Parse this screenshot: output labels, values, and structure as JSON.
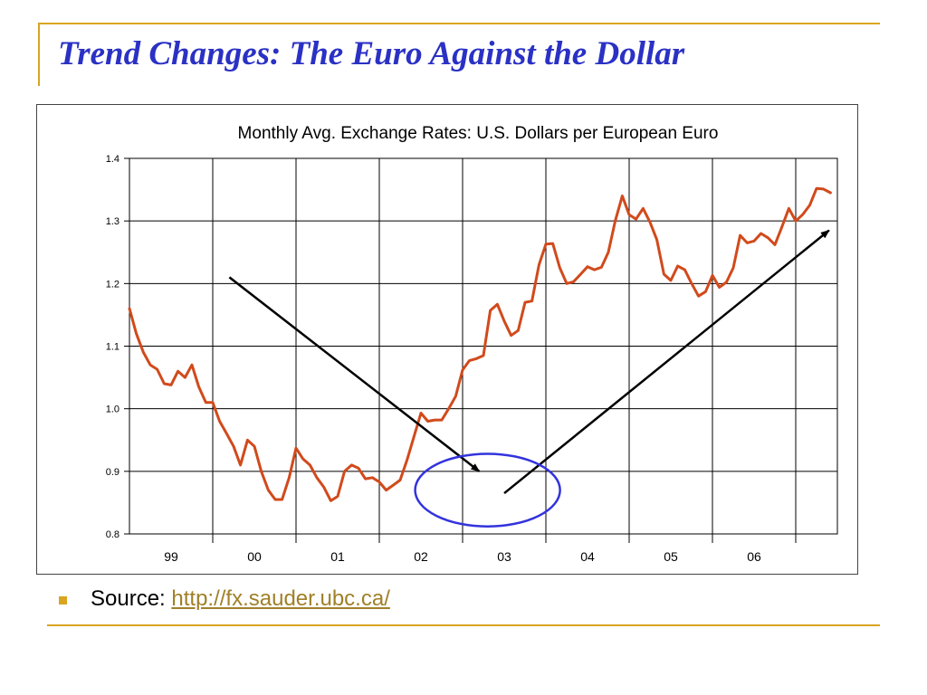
{
  "slide": {
    "title": "Trend Changes: The Euro Against the Dollar",
    "accent_color": "#d9a521",
    "title_color": "#2a31c4"
  },
  "source": {
    "label": "Source:",
    "link_text": "http://fx.sauder.ubc.ca/"
  },
  "chart_data": {
    "type": "line",
    "title": "Monthly Avg. Exchange Rates: U.S. Dollars per European Euro",
    "xlabel": "",
    "ylabel": "",
    "ylim": [
      0.8,
      1.4
    ],
    "xlim": [
      1999.0,
      2007.5
    ],
    "y_ticks": [
      "0.8",
      "0.9",
      "1.0",
      "1.1",
      "1.2",
      "1.3",
      "1.4"
    ],
    "x_categories": [
      "99",
      "00",
      "01",
      "02",
      "03",
      "04",
      "05",
      "06"
    ],
    "grid": true,
    "line_color": "#d14a1c",
    "series": [
      {
        "x": [
          1999.0,
          1999.083,
          1999.167,
          1999.25,
          1999.333,
          1999.417,
          1999.5,
          1999.583,
          1999.667,
          1999.75,
          1999.833,
          1999.917,
          2000.0,
          2000.083,
          2000.167,
          2000.25,
          2000.333,
          2000.417,
          2000.5,
          2000.583,
          2000.667,
          2000.75,
          2000.833,
          2000.917,
          2001.0,
          2001.083,
          2001.167,
          2001.25,
          2001.333,
          2001.417,
          2001.5,
          2001.583,
          2001.667,
          2001.75,
          2001.833,
          2001.917,
          2002.0,
          2002.083,
          2002.167,
          2002.25,
          2002.333,
          2002.417,
          2002.5,
          2002.583,
          2002.667,
          2002.75,
          2002.833,
          2002.917,
          2003.0,
          2003.083,
          2003.167,
          2003.25,
          2003.333,
          2003.417,
          2003.5,
          2003.583,
          2003.667,
          2003.75,
          2003.833,
          2003.917,
          2004.0,
          2004.083,
          2004.167,
          2004.25,
          2004.333,
          2004.417,
          2004.5,
          2004.583,
          2004.667,
          2004.75,
          2004.833,
          2004.917,
          2005.0,
          2005.083,
          2005.167,
          2005.25,
          2005.333,
          2005.417,
          2005.5,
          2005.583,
          2005.667,
          2005.75,
          2005.833,
          2005.917,
          2006.0,
          2006.083,
          2006.167,
          2006.25,
          2006.333,
          2006.417,
          2006.5,
          2006.583,
          2006.667,
          2006.75,
          2006.833,
          2006.917,
          2007.0,
          2007.083,
          2007.167,
          2007.25,
          2007.333,
          2007.417
        ],
        "values": [
          1.16,
          1.12,
          1.09,
          1.07,
          1.063,
          1.04,
          1.038,
          1.06,
          1.05,
          1.07,
          1.035,
          1.01,
          1.01,
          0.98,
          0.96,
          0.94,
          0.91,
          0.95,
          0.94,
          0.9,
          0.87,
          0.855,
          0.855,
          0.89,
          0.937,
          0.92,
          0.91,
          0.89,
          0.875,
          0.853,
          0.86,
          0.9,
          0.91,
          0.905,
          0.888,
          0.89,
          0.883,
          0.87,
          0.878,
          0.886,
          0.918,
          0.956,
          0.993,
          0.98,
          0.982,
          0.982,
          1.0,
          1.02,
          1.062,
          1.077,
          1.08,
          1.085,
          1.157,
          1.167,
          1.14,
          1.117,
          1.125,
          1.17,
          1.172,
          1.23,
          1.263,
          1.264,
          1.225,
          1.2,
          1.203,
          1.215,
          1.227,
          1.222,
          1.226,
          1.25,
          1.3,
          1.34,
          1.31,
          1.303,
          1.32,
          1.298,
          1.27,
          1.215,
          1.205,
          1.228,
          1.222,
          1.2,
          1.18,
          1.187,
          1.213,
          1.194,
          1.202,
          1.225,
          1.277,
          1.265,
          1.268,
          1.28,
          1.273,
          1.262,
          1.29,
          1.32,
          1.3,
          1.31,
          1.325,
          1.352,
          1.351,
          1.345
        ]
      }
    ],
    "annotations": [
      {
        "type": "arrow",
        "from": [
          2000.2,
          1.21
        ],
        "to": [
          2003.2,
          0.9
        ],
        "color": "#000000"
      },
      {
        "type": "arrow",
        "from": [
          2003.5,
          0.865
        ],
        "to": [
          2007.4,
          1.285
        ],
        "color": "#000000"
      },
      {
        "type": "ellipse",
        "center": [
          2003.3,
          0.87
        ],
        "radius_x_years": 0.87,
        "radius_y_value": 0.058,
        "color": "#3333dd"
      }
    ]
  }
}
